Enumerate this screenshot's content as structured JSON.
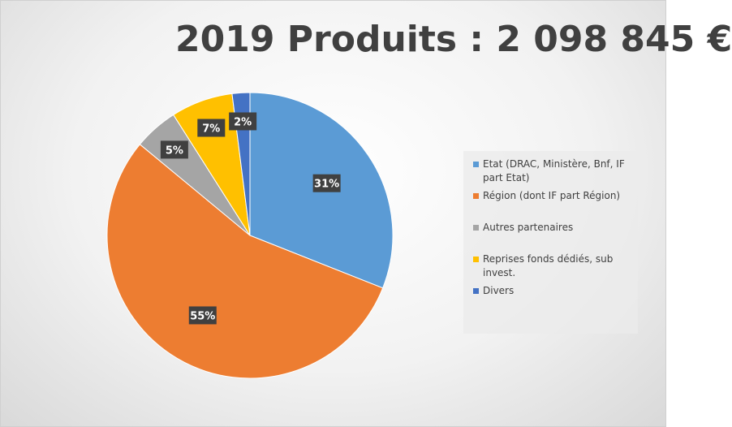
{
  "chart_data": {
    "type": "pie",
    "title": "2019 Produits : 2 098 845 €",
    "categories": [
      "Etat (DRAC, Ministère, Bnf, IF part Etat)",
      "Région (dont IF part Région)",
      "Autres partenaires",
      "Reprises fonds dédiés, sub invest.",
      "Divers"
    ],
    "values": [
      31,
      55,
      5,
      7,
      2
    ],
    "value_labels": [
      "31%",
      "55%",
      "5%",
      "7%",
      "2%"
    ],
    "colors": [
      "#5b9bd5",
      "#ed7d31",
      "#a5a5a5",
      "#ffc000",
      "#4472c4"
    ]
  }
}
